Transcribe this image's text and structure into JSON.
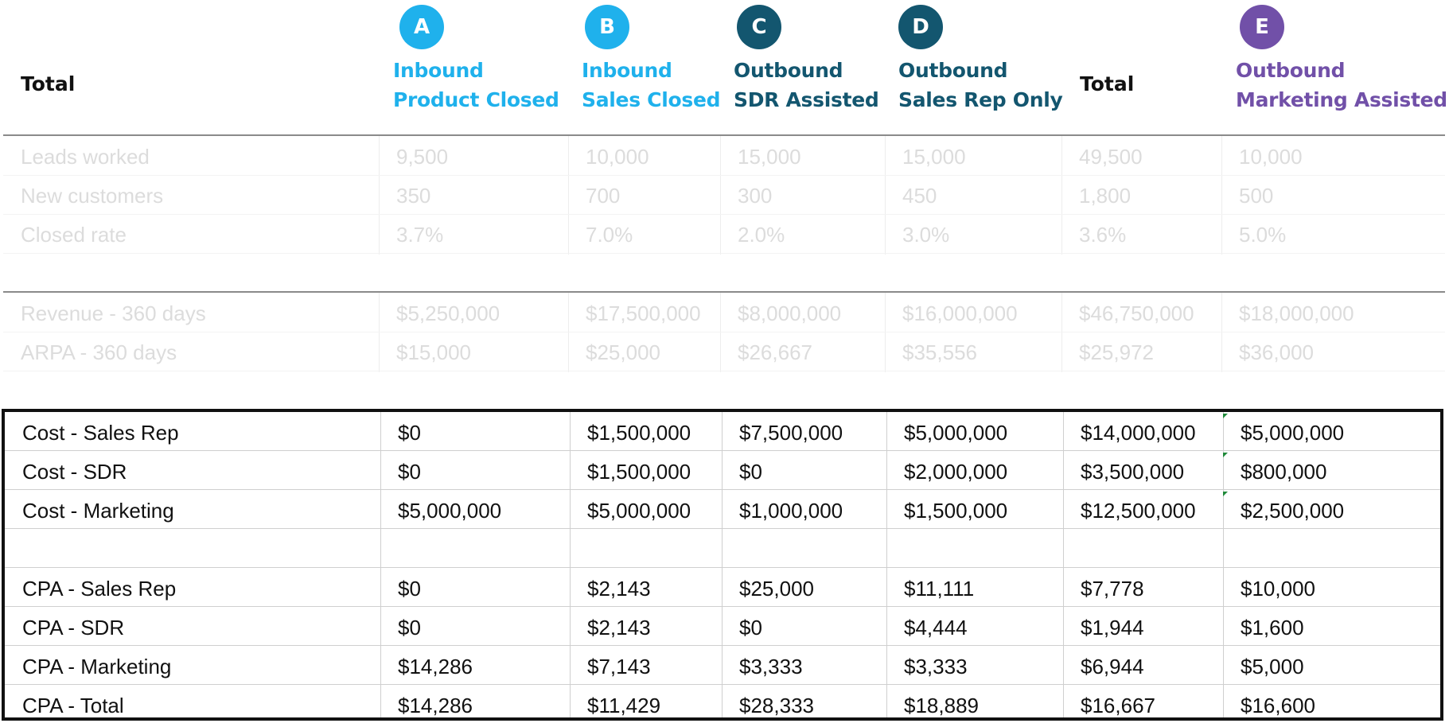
{
  "colors": {
    "inbound": "#1fb1ec",
    "outbound": "#13566f",
    "marketing": "#7150a8",
    "faded_text": "#dcdcdc",
    "border": "#111111"
  },
  "header": {
    "row_label": "Total",
    "columns": [
      {
        "badge": "A",
        "line1": "Inbound",
        "line2": "Product Closed",
        "color": "#1fb1ec"
      },
      {
        "badge": "B",
        "line1": "Inbound",
        "line2": "Sales Closed",
        "color": "#1fb1ec"
      },
      {
        "badge": "C",
        "line1": "Outbound",
        "line2": "SDR Assisted",
        "color": "#13566f"
      },
      {
        "badge": "D",
        "line1": "Outbound",
        "line2": "Sales Rep Only",
        "color": "#13566f"
      },
      {
        "total": "Total"
      },
      {
        "badge": "E",
        "line1": "Outbound",
        "line2": "Marketing Assisted",
        "color": "#7150a8"
      }
    ]
  },
  "sections": {
    "conversion": [
      {
        "label": "Leads worked",
        "values": [
          "9,500",
          "10,000",
          "15,000",
          "15,000",
          "49,500",
          "10,000"
        ]
      },
      {
        "label": "New customers",
        "values": [
          "350",
          "700",
          "300",
          "450",
          "1,800",
          "500"
        ]
      },
      {
        "label": "Closed rate",
        "values": [
          "3.7%",
          "7.0%",
          "2.0%",
          "3.0%",
          "3.6%",
          "5.0%"
        ]
      }
    ],
    "revenue": [
      {
        "label": "Revenue - 360 days",
        "values": [
          "$5,250,000",
          "$17,500,000",
          "$8,000,000",
          "$16,000,000",
          "$46,750,000",
          "$18,000,000"
        ]
      },
      {
        "label": "ARPA - 360 days",
        "values": [
          "$15,000",
          "$25,000",
          "$26,667",
          "$35,556",
          "$25,972",
          "$36,000"
        ]
      }
    ],
    "cost": [
      {
        "label": "Cost - Sales Rep",
        "values": [
          "$0",
          "$1,500,000",
          "$7,500,000",
          "$5,000,000",
          "$14,000,000",
          "$5,000,000"
        ]
      },
      {
        "label": "Cost - SDR",
        "values": [
          "$0",
          "$1,500,000",
          "$0",
          "$2,000,000",
          "$3,500,000",
          "$800,000"
        ]
      },
      {
        "label": "Cost - Marketing",
        "values": [
          "$5,000,000",
          "$5,000,000",
          "$1,000,000",
          "$1,500,000",
          "$12,500,000",
          "$2,500,000"
        ]
      },
      {
        "label": "",
        "values": [
          "",
          "",
          "",
          "",
          "",
          ""
        ]
      },
      {
        "label": "CPA - Sales Rep",
        "values": [
          "$0",
          "$2,143",
          "$25,000",
          "$11,111",
          "$7,778",
          "$10,000"
        ]
      },
      {
        "label": "CPA - SDR",
        "values": [
          "$0",
          "$2,143",
          "$0",
          "$4,444",
          "$1,944",
          "$1,600"
        ]
      },
      {
        "label": "CPA - Marketing",
        "values": [
          "$14,286",
          "$7,143",
          "$3,333",
          "$3,333",
          "$6,944",
          "$5,000"
        ]
      },
      {
        "label": "CPA - Total",
        "values": [
          "$14,286",
          "$11,429",
          "$28,333",
          "$18,889",
          "$16,667",
          "$16,600"
        ]
      }
    ]
  }
}
